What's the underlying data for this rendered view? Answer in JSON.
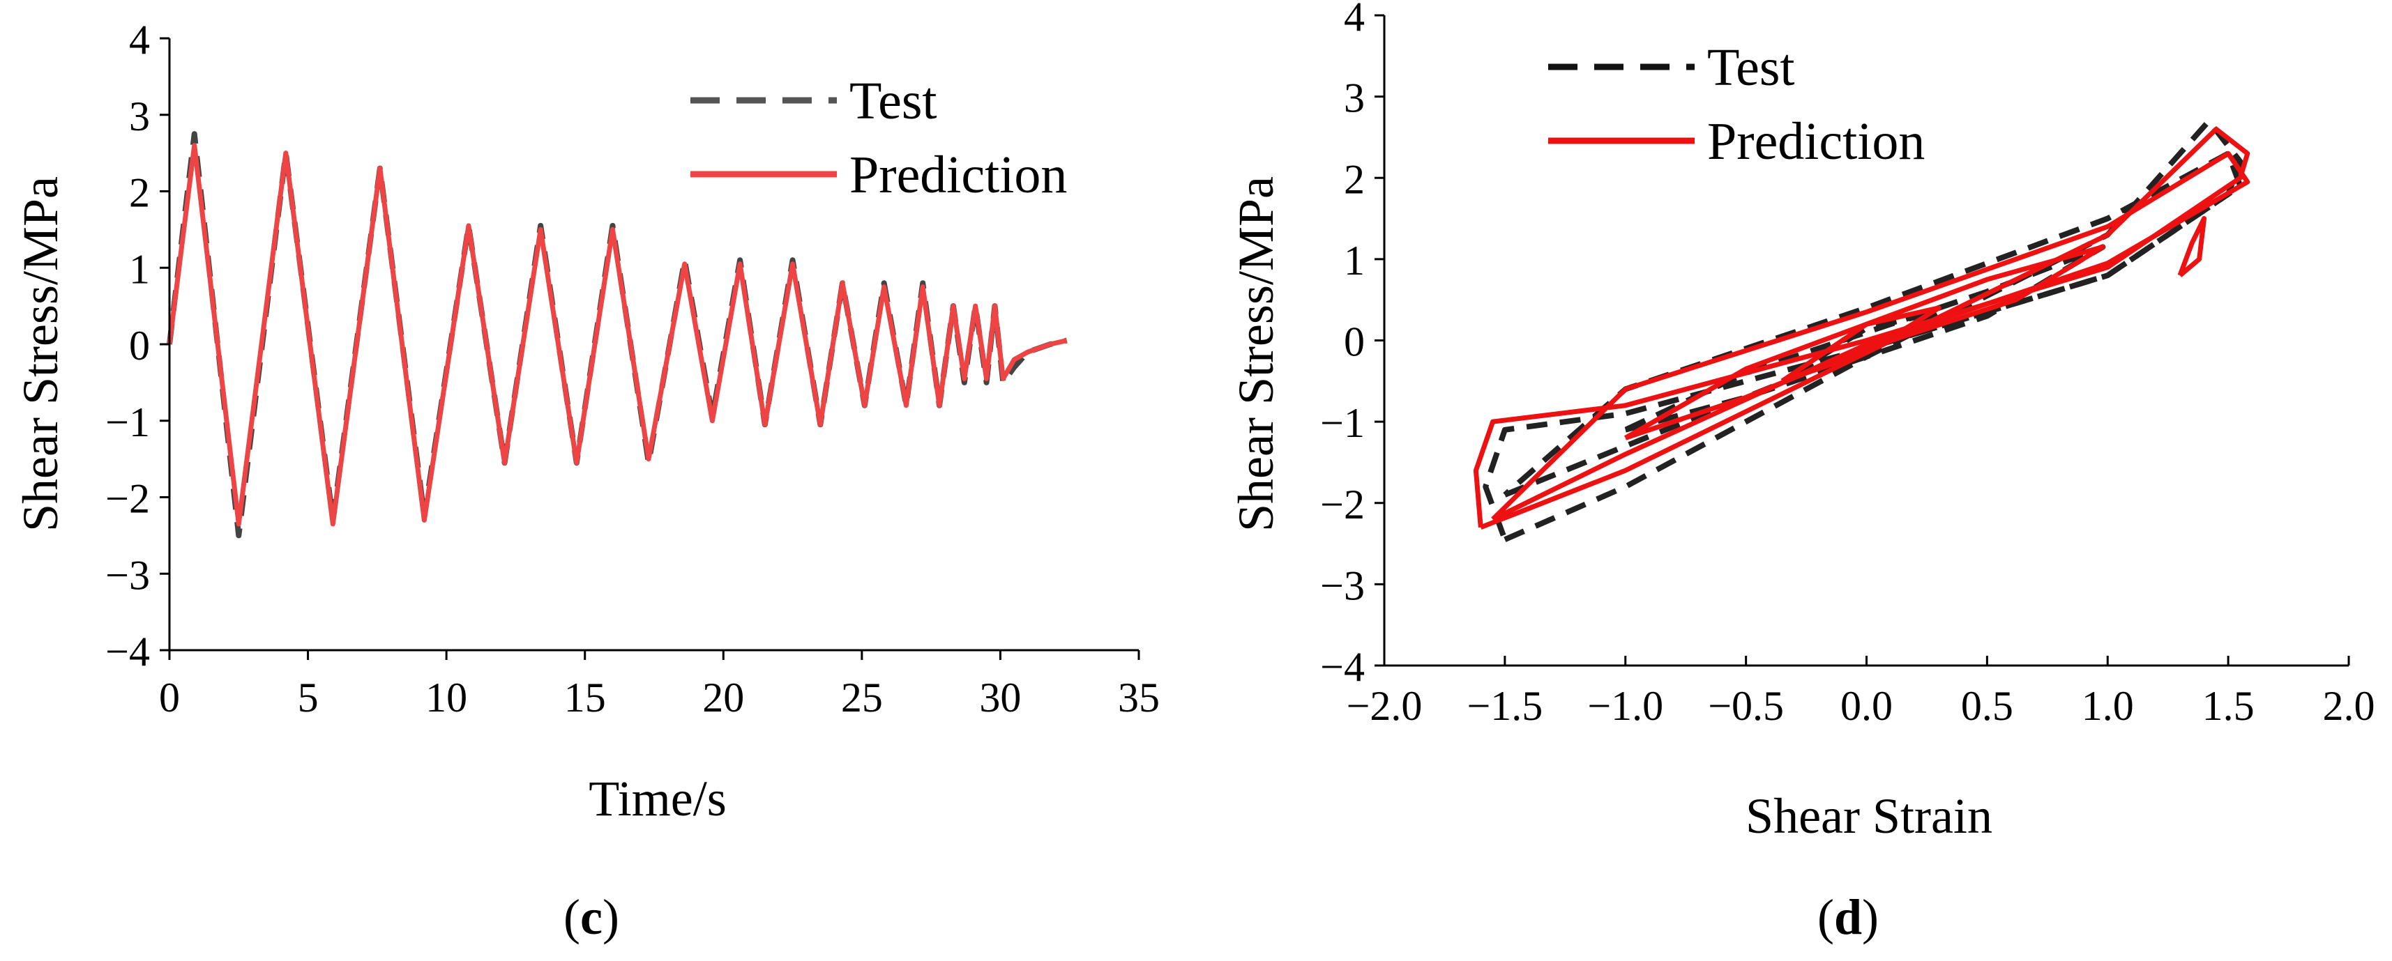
{
  "chart_data": [
    {
      "panel": "c",
      "type": "line",
      "xlabel": "Time/s",
      "ylabel": "Shear Stress/MPa",
      "xlim": [
        0,
        35
      ],
      "ylim": [
        -4,
        4
      ],
      "xticks": [
        0,
        5,
        10,
        15,
        20,
        25,
        30,
        35
      ],
      "yticks": [
        4,
        3,
        2,
        1,
        0,
        -1,
        -2,
        -3,
        -4
      ],
      "legend": {
        "position": "top-right",
        "test_label": "Test",
        "prediction_label": "Prediction"
      },
      "series": [
        {
          "name": "Test",
          "style": "dashed",
          "color": "#444444",
          "x": [
            0,
            0.9,
            2.5,
            4.2,
            5.9,
            7.6,
            9.2,
            10.8,
            12.1,
            13.4,
            14.7,
            16.0,
            17.3,
            18.6,
            19.6,
            20.6,
            21.5,
            22.5,
            23.5,
            24.3,
            25.1,
            25.8,
            26.6,
            27.2,
            27.8,
            28.3,
            28.7,
            29.1,
            29.5,
            29.8,
            30.1,
            30.5,
            31.0,
            31.8,
            32.4
          ],
          "y": [
            0,
            2.75,
            -2.5,
            2.5,
            -2.3,
            2.3,
            -2.25,
            1.55,
            -1.55,
            1.55,
            -1.55,
            1.55,
            -1.55,
            1.1,
            -0.95,
            1.1,
            -1.05,
            1.1,
            -1.05,
            0.8,
            -0.8,
            0.8,
            -0.8,
            0.8,
            -0.8,
            0.5,
            -0.5,
            0.5,
            -0.5,
            0.5,
            -0.5,
            -0.3,
            -0.1,
            0.0,
            0.05
          ]
        },
        {
          "name": "Prediction",
          "style": "solid",
          "color": "#ee4444",
          "x": [
            0,
            0.9,
            2.5,
            4.2,
            5.9,
            7.6,
            9.2,
            10.8,
            12.1,
            13.4,
            14.7,
            16.0,
            17.3,
            18.6,
            19.6,
            20.6,
            21.5,
            22.5,
            23.5,
            24.3,
            25.1,
            25.8,
            26.6,
            27.2,
            27.8,
            28.3,
            28.7,
            29.1,
            29.5,
            29.8,
            30.1,
            30.5,
            31.0,
            31.8,
            32.4
          ],
          "y": [
            0,
            2.6,
            -2.35,
            2.5,
            -2.35,
            2.3,
            -2.3,
            1.55,
            -1.55,
            1.5,
            -1.55,
            1.5,
            -1.5,
            1.05,
            -1.0,
            1.05,
            -1.05,
            1.05,
            -1.05,
            0.8,
            -0.8,
            0.75,
            -0.8,
            0.75,
            -0.8,
            0.5,
            -0.45,
            0.5,
            -0.45,
            0.5,
            -0.45,
            -0.2,
            -0.1,
            0.0,
            0.05
          ]
        }
      ]
    },
    {
      "panel": "d",
      "type": "line",
      "xlabel": "Shear Strain",
      "ylabel": "Shear Stress/MPa",
      "xlim": [
        -2.0,
        2.0
      ],
      "ylim": [
        -4,
        4
      ],
      "xticks": [
        "−2.0",
        "−1.5",
        "−1.0",
        "−0.5",
        "0.0",
        "0.5",
        "1.0",
        "1.5",
        "2.0"
      ],
      "yticks": [
        "4",
        "3",
        "2",
        "1",
        "0",
        "−1",
        "−2",
        "−3",
        "−4"
      ],
      "legend": {
        "position": "top-left",
        "test_label": "Test",
        "prediction_label": "Prediction"
      },
      "series": [
        {
          "name": "Test",
          "style": "dashed",
          "color": "#222222",
          "loops": [
            {
              "x": [
                -1.5,
                -1.0,
                0.0,
                1.0,
                1.42,
                1.55,
                1.5,
                1.0,
                0.0,
                -1.0,
                -1.5,
                -1.58,
                -1.5
              ],
              "y": [
                -2.45,
                -1.8,
                -0.2,
                1.3,
                2.7,
                2.2,
                1.8,
                0.8,
                -0.1,
                -0.9,
                -1.1,
                -1.8,
                -2.45
              ]
            },
            {
              "x": [
                -1.5,
                -1.0,
                0.0,
                1.0,
                1.55,
                1.5,
                1.0,
                0.0,
                -1.0,
                -1.5
              ],
              "y": [
                -1.9,
                -1.3,
                -0.1,
                0.8,
                1.9,
                2.3,
                1.5,
                0.4,
                -0.6,
                -1.9
              ]
            },
            {
              "x": [
                -1.0,
                -0.5,
                0.0,
                0.5,
                0.98,
                0.5,
                0.0,
                -0.5,
                -1.0
              ],
              "y": [
                -1.1,
                -0.7,
                -0.2,
                0.3,
                1.15,
                0.6,
                0.1,
                -0.4,
                -1.1
              ]
            },
            {
              "x": [
                -0.3,
                0.0,
                0.3,
                0.0,
                -0.3
              ],
              "y": [
                -0.4,
                -0.1,
                0.35,
                0.15,
                -0.4
              ]
            }
          ]
        },
        {
          "name": "Prediction",
          "style": "solid",
          "color": "#ee1111",
          "loops": [
            {
              "x": [
                -1.6,
                -1.0,
                0.0,
                1.0,
                1.45,
                1.58,
                1.55,
                1.0,
                0.0,
                -1.0,
                -1.55,
                -1.62,
                -1.6
              ],
              "y": [
                -2.3,
                -1.6,
                -0.15,
                1.3,
                2.6,
                2.3,
                2.0,
                0.9,
                0.0,
                -0.8,
                -1.0,
                -1.6,
                -2.3
              ]
            },
            {
              "x": [
                -1.55,
                -1.0,
                0.0,
                1.0,
                1.58,
                1.5,
                1.0,
                0.0,
                -1.0,
                -1.55
              ],
              "y": [
                -2.2,
                -1.4,
                -0.05,
                0.95,
                1.95,
                2.3,
                1.4,
                0.35,
                -0.6,
                -2.2
              ]
            },
            {
              "x": [
                -1.0,
                -0.5,
                0.0,
                0.62,
                0.98,
                0.5,
                0.0,
                -0.5,
                -1.0
              ],
              "y": [
                -1.2,
                -0.7,
                -0.1,
                0.5,
                1.15,
                0.75,
                0.2,
                -0.35,
                -1.2
              ]
            },
            {
              "x": [
                -0.35,
                0.0,
                0.3,
                0.0,
                -0.35
              ],
              "y": [
                -0.5,
                -0.15,
                0.4,
                0.2,
                -0.5
              ]
            },
            {
              "x": [
                1.3,
                1.38,
                1.4,
                1.35,
                1.3
              ],
              "y": [
                0.8,
                1.0,
                1.5,
                1.2,
                0.8
              ]
            }
          ]
        }
      ]
    }
  ],
  "panel_labels": {
    "c": {
      "open": "(",
      "letter": "c",
      "close": ")"
    },
    "d": {
      "open": "(",
      "letter": "d",
      "close": ")"
    }
  }
}
